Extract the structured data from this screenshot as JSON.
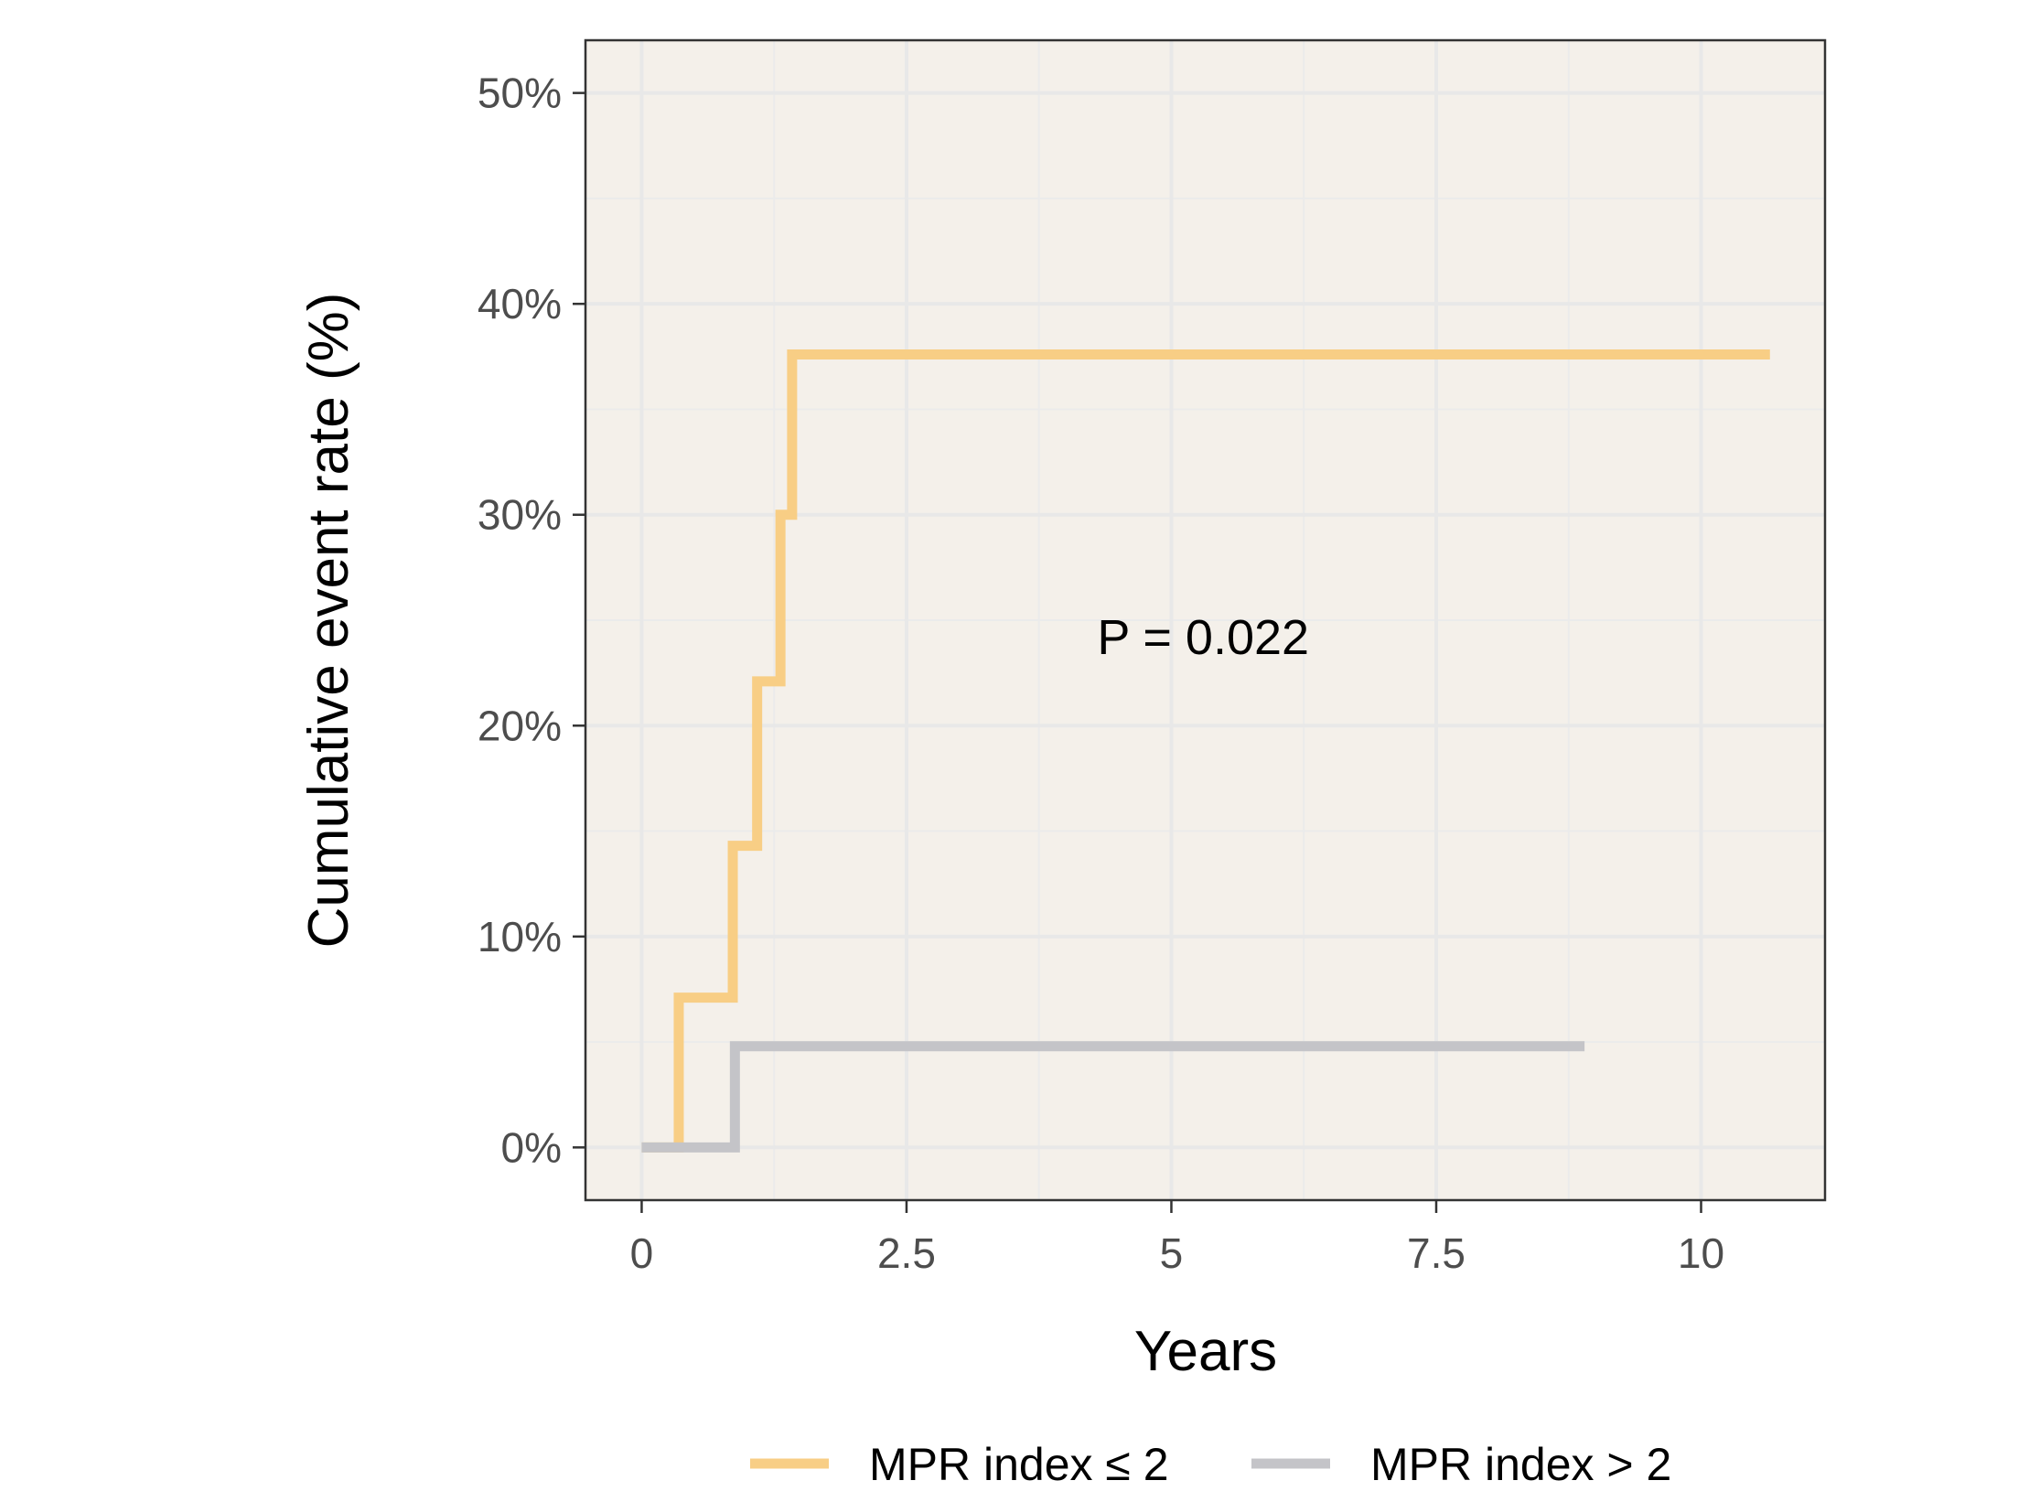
{
  "chart_data": {
    "type": "line",
    "step": true,
    "xlabel": "Years",
    "ylabel": "Cumulative event rate (%)",
    "xlim": [
      -0.5305,
      11.17
    ],
    "ylim": [
      -0.025,
      0.525
    ],
    "x_ticks": [
      0,
      2.5,
      5,
      7.5,
      10
    ],
    "x_tick_labels": [
      "0",
      "2.5",
      "5",
      "7.5",
      "10"
    ],
    "y_ticks": [
      0,
      0.1,
      0.2,
      0.3,
      0.4,
      0.5
    ],
    "y_tick_labels": [
      "0%",
      "10%",
      "20%",
      "30%",
      "40%",
      "50%"
    ],
    "grid": true,
    "legend_position": "bottom",
    "annotation": {
      "text": "P = 0.022",
      "x": 5.3,
      "y": 0.234
    },
    "panel_background": "#f4f0ea",
    "series": [
      {
        "name": "MPR index ≤ 2",
        "color": "#f8ce85",
        "x": [
          0,
          0.35,
          0.86,
          1.09,
          1.31,
          1.42,
          10.65
        ],
        "y": [
          0,
          0.071,
          0.143,
          0.221,
          0.3,
          0.376,
          0.376
        ]
      },
      {
        "name": "MPR index > 2",
        "color": "#c4c4c8",
        "x": [
          0,
          0.88,
          8.9
        ],
        "y": [
          0,
          0.048,
          0.048
        ]
      }
    ]
  }
}
